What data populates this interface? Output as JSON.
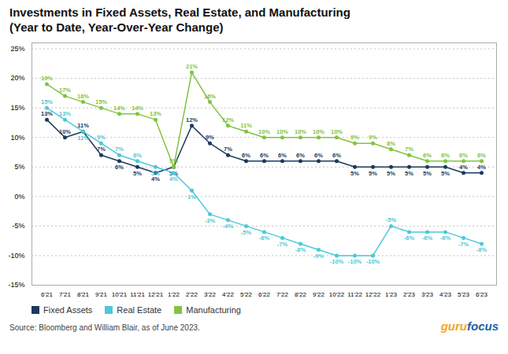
{
  "chart_data": {
    "type": "line",
    "title": "Investments in Fixed Assets, Real Estate, and Manufacturing",
    "subtitle": "(Year to Date, Year-Over-Year Change)",
    "caption": "Source: Bloomberg and William Blair, as of June 2023.",
    "annotations": [
      {
        "text": "guru",
        "color": "#f5a623"
      },
      {
        "text": "focus",
        "color": "#1a5fa8"
      }
    ],
    "categories": [
      "6'21",
      "7'21",
      "8'21",
      "9'21",
      "10'21",
      "11'21",
      "12'21",
      "1'22",
      "2'22",
      "3'22",
      "4'22",
      "5'22",
      "6'22",
      "7'22",
      "8'22",
      "9'22",
      "10'22",
      "11'22",
      "12'22",
      "1'23",
      "2'23",
      "3'23",
      "4'23",
      "5'23",
      "6'23"
    ],
    "series": [
      {
        "name": "Fixed Assets",
        "color": "#1b3a5c",
        "values": [
          13,
          10,
          11,
          7,
          6,
          5,
          4,
          5,
          12,
          9,
          7,
          6,
          6,
          6,
          6,
          6,
          6,
          5,
          5,
          5,
          5,
          5,
          5,
          4,
          4
        ],
        "value_labels": [
          "13%",
          "10%",
          "11%",
          "7%",
          "6%",
          "5%",
          "4%",
          "5%",
          "12%",
          "9%",
          "7%",
          "6%",
          "6%",
          "6%",
          "6%",
          "6%",
          "6%",
          "5%",
          "5%",
          "5%",
          "5%",
          "5%",
          "5%",
          "4%",
          "4%"
        ]
      },
      {
        "name": "Real Estate",
        "color": "#4dc8d8",
        "values": [
          15,
          13,
          11,
          9,
          7,
          6,
          5,
          4,
          1,
          -3,
          -4,
          -5,
          -6,
          -7,
          -8,
          -9,
          -10,
          -10,
          -10,
          -5,
          -6,
          -6,
          -6,
          -7,
          -8
        ],
        "value_labels": [
          "15%",
          "13%",
          "11%",
          "9%",
          "7%",
          "6%",
          "5%",
          "4%",
          "1%",
          "-3%",
          "-4%",
          "-5%",
          "-6%",
          "-7%",
          "-8%",
          "-9%",
          "-10%",
          "-10%",
          "-10%",
          "-5%",
          "-6%",
          "-6%",
          "-6%",
          "-7%",
          "-8%"
        ]
      },
      {
        "name": "Manufacturing",
        "color": "#82c341",
        "values": [
          19,
          17,
          16,
          15,
          14,
          14,
          13,
          5,
          21,
          16,
          12,
          11,
          10,
          10,
          10,
          10,
          10,
          9,
          9,
          8,
          7,
          6,
          6,
          6,
          6
        ],
        "value_labels": [
          "19%",
          "17%",
          "16%",
          "15%",
          "14%",
          "14%",
          "13%",
          "5%",
          "21%",
          "16%",
          "12%",
          "11%",
          "10%",
          "10%",
          "10%",
          "10%",
          "10%",
          "9%",
          "9%",
          "8%",
          "7%",
          "6%",
          "6%",
          "6%",
          "6%"
        ]
      }
    ],
    "ylim": [
      -15,
      26
    ],
    "yticks": [
      {
        "value": -15,
        "label": "-15%"
      },
      {
        "value": -10,
        "label": "-10%"
      },
      {
        "value": -5,
        "label": "-5%"
      },
      {
        "value": 0,
        "label": "0%"
      },
      {
        "value": 5,
        "label": "5%"
      },
      {
        "value": 10,
        "label": "10%"
      },
      {
        "value": 15,
        "label": "15%"
      },
      {
        "value": 20,
        "label": "20%"
      },
      {
        "value": 25,
        "label": "25%"
      }
    ],
    "grid": true,
    "legend": "bottom",
    "data_labels": true,
    "marker": "circle"
  }
}
